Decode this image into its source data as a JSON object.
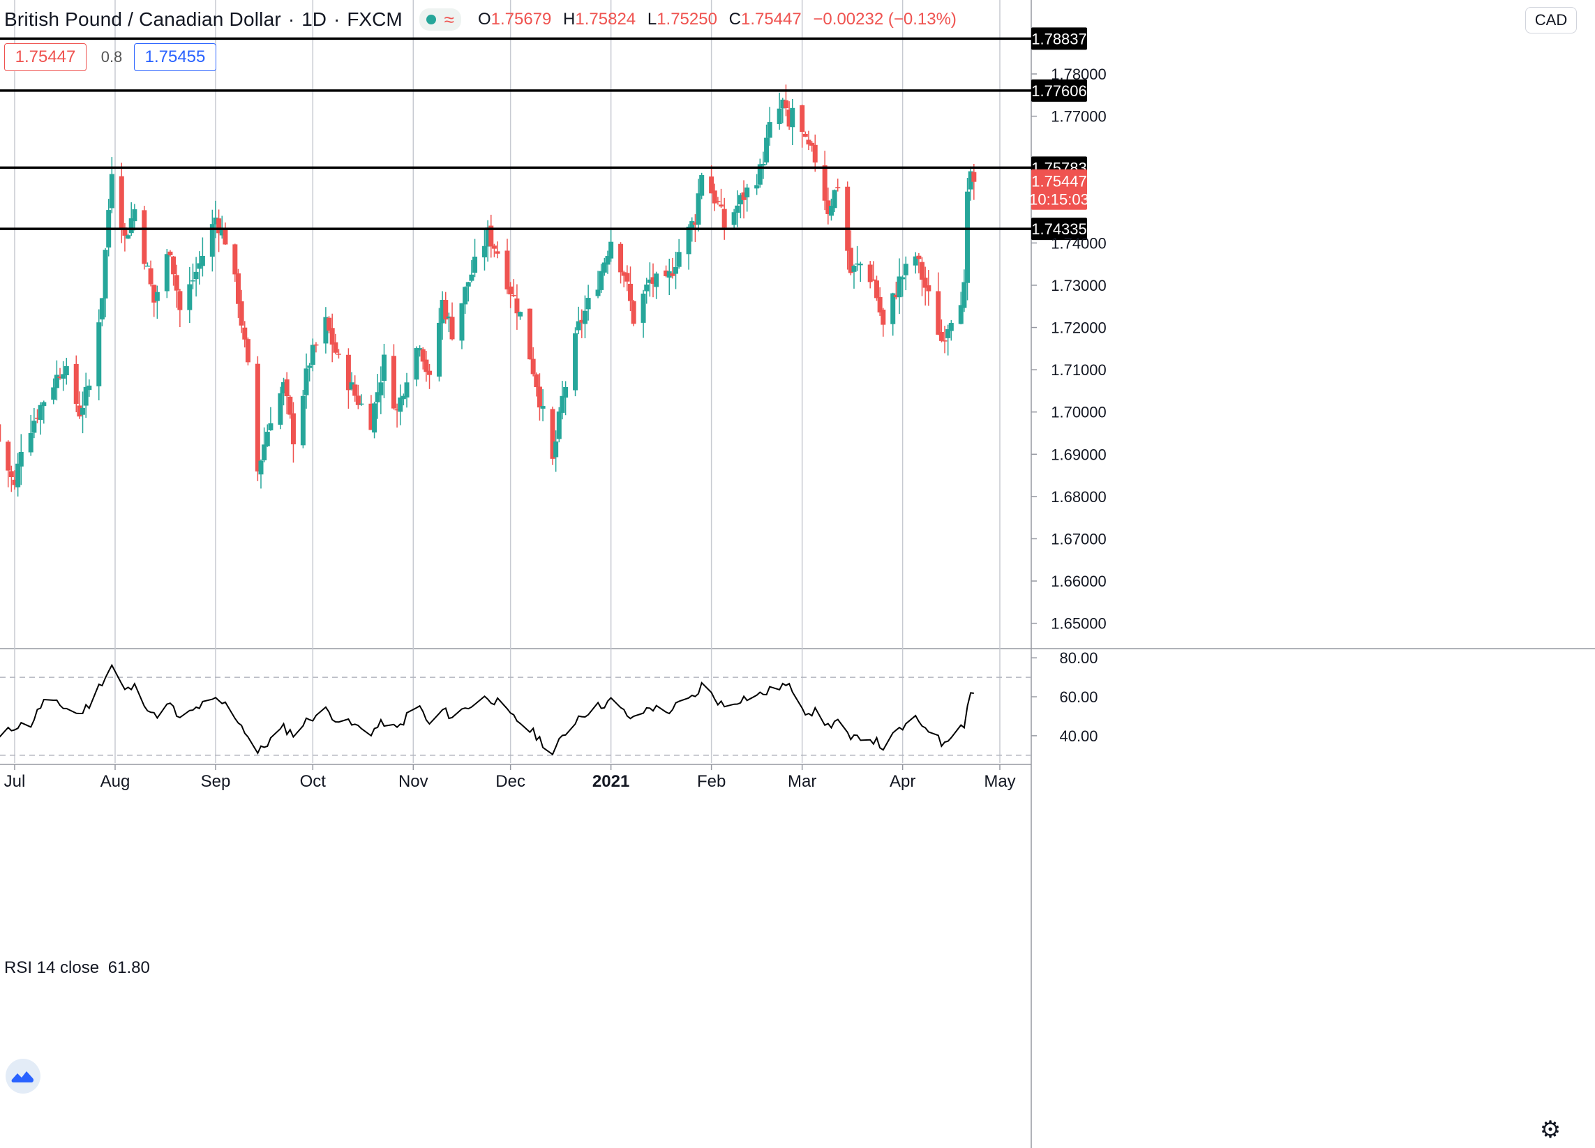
{
  "header": {
    "symbol": "British Pound / Canadian Dollar",
    "interval": "1D",
    "source": "FXCM",
    "open_label": "O",
    "open": "1.75679",
    "high_label": "H",
    "high": "1.75824",
    "low_label": "L",
    "low": "1.75250",
    "close_label": "C",
    "close": "1.75447",
    "change": "−0.00232 (−0.13%)"
  },
  "quote": {
    "bid": "1.75447",
    "spread": "0.8",
    "ask": "1.75455"
  },
  "currency_button": "CAD",
  "rsi_indicator": {
    "label": "RSI 14 close",
    "value": "61.80"
  },
  "colors": {
    "up": "#26a69a",
    "down": "#ef5350",
    "text": "#131722",
    "grid": "#c7cad1",
    "hline": "#000000",
    "ask": "#2962ff"
  },
  "icons": {
    "status": "status-dot-icon",
    "wave": "wave-icon",
    "logo": "tradingview-logo-icon",
    "settings": "gear-icon"
  },
  "chart_data": [
    {
      "type": "candlestick",
      "title": "British Pound / Canadian Dollar · 1D · FXCM",
      "ylim": [
        1.644,
        1.7975
      ],
      "y_ticks": [
        "1.65000",
        "1.66000",
        "1.67000",
        "1.68000",
        "1.69000",
        "1.70000",
        "1.71000",
        "1.72000",
        "1.73000",
        "1.74000",
        "1.77000",
        "1.78000"
      ],
      "x_ticks": [
        {
          "label": "Jul",
          "date": "2020-07-01"
        },
        {
          "label": "Aug",
          "date": "2020-08-01"
        },
        {
          "label": "Sep",
          "date": "2020-09-01"
        },
        {
          "label": "Oct",
          "date": "2020-10-01"
        },
        {
          "label": "Nov",
          "date": "2020-11-01"
        },
        {
          "label": "Dec",
          "date": "2020-12-01"
        },
        {
          "label": "2021",
          "date": "2021-01-01"
        },
        {
          "label": "Feb",
          "date": "2021-02-01"
        },
        {
          "label": "Mar",
          "date": "2021-03-01"
        },
        {
          "label": "Apr",
          "date": "2021-04-01"
        },
        {
          "label": "May",
          "date": "2021-05-01"
        }
      ],
      "horizontal_levels": [
        "1.78837",
        "1.77606",
        "1.75783",
        "1.74335"
      ],
      "last_price": {
        "value": "1.75447",
        "countdown": "10:15:03"
      },
      "anchors": [
        [
          "2020-06-26",
          1.693
        ],
        [
          "2020-07-01",
          1.682
        ],
        [
          "2020-07-03",
          1.692
        ],
        [
          "2020-07-10",
          1.703
        ],
        [
          "2020-07-16",
          1.711
        ],
        [
          "2020-07-21",
          1.7
        ],
        [
          "2020-07-24",
          1.706
        ],
        [
          "2020-07-28",
          1.728
        ],
        [
          "2020-07-31",
          1.758
        ],
        [
          "2020-08-04",
          1.741
        ],
        [
          "2020-08-07",
          1.748
        ],
        [
          "2020-08-13",
          1.726
        ],
        [
          "2020-08-18",
          1.739
        ],
        [
          "2020-08-21",
          1.724
        ],
        [
          "2020-08-27",
          1.735
        ],
        [
          "2020-09-01",
          1.746
        ],
        [
          "2020-09-04",
          1.741
        ],
        [
          "2020-09-08",
          1.727
        ],
        [
          "2020-09-11",
          1.71
        ],
        [
          "2020-09-14",
          1.686
        ],
        [
          "2020-09-18",
          1.699
        ],
        [
          "2020-09-22",
          1.706
        ],
        [
          "2020-09-25",
          1.694
        ],
        [
          "2020-09-30",
          1.712
        ],
        [
          "2020-10-05",
          1.721
        ],
        [
          "2020-10-09",
          1.712
        ],
        [
          "2020-10-14",
          1.704
        ],
        [
          "2020-10-19",
          1.698
        ],
        [
          "2020-10-23",
          1.712
        ],
        [
          "2020-10-27",
          1.7
        ],
        [
          "2020-10-30",
          1.709
        ],
        [
          "2020-11-03",
          1.717
        ],
        [
          "2020-11-06",
          1.707
        ],
        [
          "2020-11-10",
          1.726
        ],
        [
          "2020-11-13",
          1.719
        ],
        [
          "2020-11-18",
          1.731
        ],
        [
          "2020-11-24",
          1.742
        ],
        [
          "2020-11-27",
          1.738
        ],
        [
          "2020-12-01",
          1.729
        ],
        [
          "2020-12-04",
          1.723
        ],
        [
          "2020-12-09",
          1.707
        ],
        [
          "2020-12-14",
          1.688
        ],
        [
          "2020-12-17",
          1.703
        ],
        [
          "2020-12-22",
          1.72
        ],
        [
          "2020-12-28",
          1.731
        ],
        [
          "2021-01-01",
          1.741
        ],
        [
          "2021-01-05",
          1.733
        ],
        [
          "2021-01-08",
          1.722
        ],
        [
          "2021-01-13",
          1.731
        ],
        [
          "2021-01-18",
          1.73
        ],
        [
          "2021-01-22",
          1.738
        ],
        [
          "2021-01-27",
          1.746
        ],
        [
          "2021-01-29",
          1.757
        ],
        [
          "2021-02-03",
          1.749
        ],
        [
          "2021-02-05",
          1.744
        ],
        [
          "2021-02-10",
          1.75
        ],
        [
          "2021-02-16",
          1.757
        ],
        [
          "2021-02-19",
          1.767
        ],
        [
          "2021-02-23",
          1.773
        ],
        [
          "2021-02-25",
          1.767
        ],
        [
          "2021-02-26",
          1.772
        ],
        [
          "2021-03-02",
          1.763
        ],
        [
          "2021-03-05",
          1.76
        ],
        [
          "2021-03-09",
          1.748
        ],
        [
          "2021-03-12",
          1.754
        ],
        [
          "2021-03-16",
          1.733
        ],
        [
          "2021-03-19",
          1.735
        ],
        [
          "2021-03-23",
          1.731
        ],
        [
          "2021-03-26",
          1.72
        ],
        [
          "2021-03-31",
          1.731
        ],
        [
          "2021-04-05",
          1.737
        ],
        [
          "2021-04-09",
          1.727
        ],
        [
          "2021-04-13",
          1.717
        ],
        [
          "2021-04-16",
          1.723
        ],
        [
          "2021-04-20",
          1.729
        ],
        [
          "2021-04-21",
          1.75
        ],
        [
          "2021-04-22",
          1.7568
        ],
        [
          "2021-04-23",
          1.75447
        ]
      ]
    },
    {
      "type": "line",
      "title": "RSI 14 close",
      "ylim": [
        26,
        84
      ],
      "y_ticks": [
        "40.00",
        "60.00",
        "80.00"
      ],
      "bands": [
        30,
        70
      ],
      "last_value": "61.80",
      "anchors": [
        [
          "2020-06-26",
          38
        ],
        [
          "2020-07-01",
          45
        ],
        [
          "2020-07-06",
          46
        ],
        [
          "2020-07-10",
          58
        ],
        [
          "2020-07-16",
          55
        ],
        [
          "2020-07-21",
          51
        ],
        [
          "2020-07-24",
          56
        ],
        [
          "2020-07-28",
          68
        ],
        [
          "2020-07-31",
          76
        ],
        [
          "2020-08-04",
          63
        ],
        [
          "2020-08-07",
          65
        ],
        [
          "2020-08-13",
          50
        ],
        [
          "2020-08-18",
          56
        ],
        [
          "2020-08-21",
          48
        ],
        [
          "2020-08-27",
          55
        ],
        [
          "2020-09-01",
          58
        ],
        [
          "2020-09-04",
          56
        ],
        [
          "2020-09-08",
          48
        ],
        [
          "2020-09-11",
          40
        ],
        [
          "2020-09-14",
          31
        ],
        [
          "2020-09-18",
          38
        ],
        [
          "2020-09-22",
          44
        ],
        [
          "2020-09-25",
          41
        ],
        [
          "2020-09-30",
          49
        ],
        [
          "2020-10-05",
          53
        ],
        [
          "2020-10-09",
          48
        ],
        [
          "2020-10-14",
          45
        ],
        [
          "2020-10-19",
          42
        ],
        [
          "2020-10-23",
          47
        ],
        [
          "2020-10-27",
          43
        ],
        [
          "2020-10-30",
          50
        ],
        [
          "2020-11-03",
          55
        ],
        [
          "2020-11-06",
          45
        ],
        [
          "2020-11-10",
          53
        ],
        [
          "2020-11-13",
          50
        ],
        [
          "2020-11-18",
          55
        ],
        [
          "2020-11-24",
          60
        ],
        [
          "2020-11-27",
          57
        ],
        [
          "2020-12-01",
          50
        ],
        [
          "2020-12-04",
          47
        ],
        [
          "2020-12-09",
          40
        ],
        [
          "2020-12-14",
          31
        ],
        [
          "2020-12-17",
          39
        ],
        [
          "2020-12-22",
          50
        ],
        [
          "2020-12-28",
          55
        ],
        [
          "2021-01-01",
          58
        ],
        [
          "2021-01-05",
          52
        ],
        [
          "2021-01-08",
          48
        ],
        [
          "2021-01-13",
          55
        ],
        [
          "2021-01-18",
          52
        ],
        [
          "2021-01-22",
          56
        ],
        [
          "2021-01-27",
          60
        ],
        [
          "2021-01-29",
          66
        ],
        [
          "2021-02-03",
          58
        ],
        [
          "2021-02-05",
          55
        ],
        [
          "2021-02-10",
          59
        ],
        [
          "2021-02-16",
          61
        ],
        [
          "2021-02-19",
          63
        ],
        [
          "2021-02-23",
          66
        ],
        [
          "2021-02-26",
          64
        ],
        [
          "2021-03-02",
          53
        ],
        [
          "2021-03-05",
          52
        ],
        [
          "2021-03-09",
          45
        ],
        [
          "2021-03-12",
          48
        ],
        [
          "2021-03-16",
          37
        ],
        [
          "2021-03-19",
          40
        ],
        [
          "2021-03-23",
          38
        ],
        [
          "2021-03-26",
          34
        ],
        [
          "2021-03-31",
          43
        ],
        [
          "2021-04-05",
          48
        ],
        [
          "2021-04-09",
          44
        ],
        [
          "2021-04-13",
          36
        ],
        [
          "2021-04-16",
          41
        ],
        [
          "2021-04-20",
          46
        ],
        [
          "2021-04-21",
          56
        ],
        [
          "2021-04-22",
          62
        ],
        [
          "2021-04-23",
          61.8
        ]
      ]
    }
  ]
}
